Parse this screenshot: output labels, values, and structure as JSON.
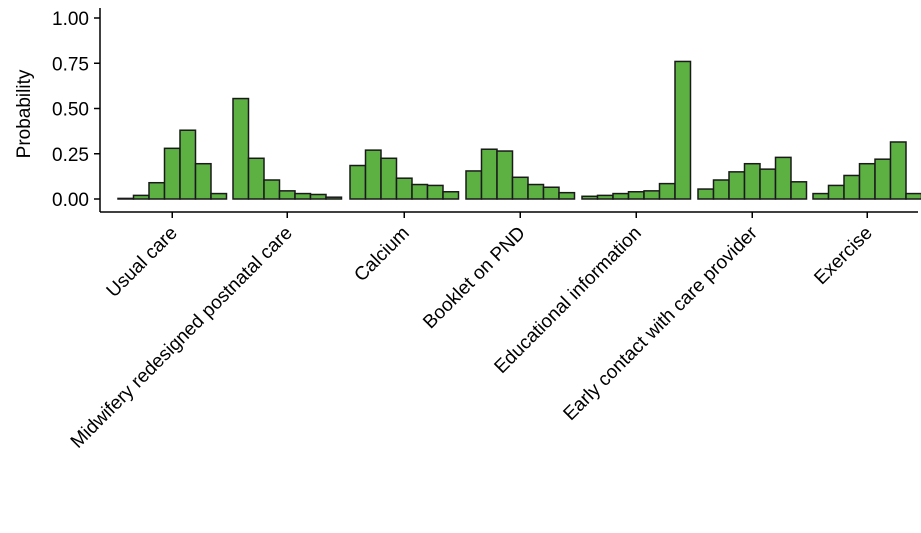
{
  "chart_data": {
    "type": "bar",
    "title": "",
    "xlabel": "",
    "ylabel": "Probability",
    "ylim": [
      0,
      1.0
    ],
    "yticks": [
      "0.00",
      "0.25",
      "0.50",
      "0.75",
      "1.00"
    ],
    "grid": false,
    "legend": "none",
    "bar_color": "#5db143",
    "bar_outline": "#1a1a1a",
    "categories": [
      "Usual care",
      "Midwifery redesigned postnatal care",
      "Calcium",
      "Booklet on PND",
      "Educational information",
      "Early contact with care provider",
      "Exercise"
    ],
    "rank_values": [
      [
        0.0,
        0.02,
        0.09,
        0.28,
        0.38,
        0.195,
        0.03
      ],
      [
        0.555,
        0.225,
        0.105,
        0.045,
        0.03,
        0.025,
        0.01
      ],
      [
        0.185,
        0.27,
        0.225,
        0.115,
        0.08,
        0.075,
        0.04
      ],
      [
        0.155,
        0.275,
        0.265,
        0.12,
        0.08,
        0.065,
        0.035
      ],
      [
        0.015,
        0.02,
        0.03,
        0.04,
        0.045,
        0.085,
        0.76
      ],
      [
        0.055,
        0.105,
        0.15,
        0.195,
        0.165,
        0.23,
        0.095
      ],
      [
        0.03,
        0.075,
        0.13,
        0.195,
        0.22,
        0.315,
        0.03
      ]
    ]
  }
}
